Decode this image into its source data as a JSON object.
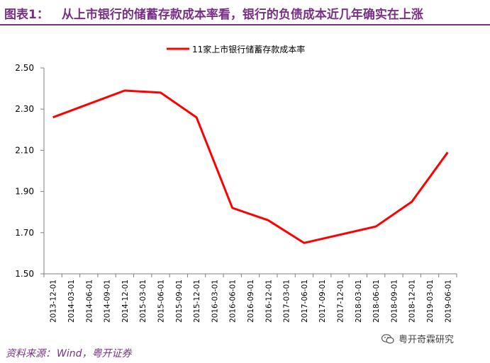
{
  "header": {
    "label": "图表1：",
    "text": "从上市银行的储蓄存款成本率看，银行的负债成本近几年确实在上涨"
  },
  "footer": {
    "source_label": "资料来源：",
    "source_text": "Wind，粤开证券"
  },
  "watermark": {
    "text": "粤开奇霖研究",
    "icon": "wechat-icon"
  },
  "colors": {
    "accent": "#7a2f86",
    "series": "#ff0000",
    "axis": "#808080"
  },
  "chart_data": {
    "type": "line",
    "legend_position": "top-center",
    "grid": false,
    "x": [
      "2013-12-01",
      "2014-03-01",
      "2014-06-01",
      "2014-09-01",
      "2014-12-01",
      "2015-03-01",
      "2015-06-01",
      "2015-09-01",
      "2015-12-01",
      "2016-03-01",
      "2016-06-01",
      "2016-09-01",
      "2016-12-01",
      "2017-03-01",
      "2017-06-01",
      "2017-09-01",
      "2017-12-01",
      "2018-03-01",
      "2018-06-01",
      "2018-09-01",
      "2018-12-01",
      "2019-03-01",
      "2019-06-01"
    ],
    "ylim": [
      1.5,
      2.5
    ],
    "yticks": [
      "1.50",
      "1.70",
      "1.90",
      "2.10",
      "2.30",
      "2.50"
    ],
    "series": [
      {
        "name": "11家上市银行储蓄存款成本率",
        "values": [
          2.26,
          null,
          null,
          null,
          2.39,
          null,
          2.38,
          null,
          2.26,
          null,
          1.82,
          null,
          1.76,
          null,
          1.65,
          null,
          null,
          null,
          1.73,
          null,
          1.85,
          null,
          2.09
        ]
      }
    ]
  }
}
